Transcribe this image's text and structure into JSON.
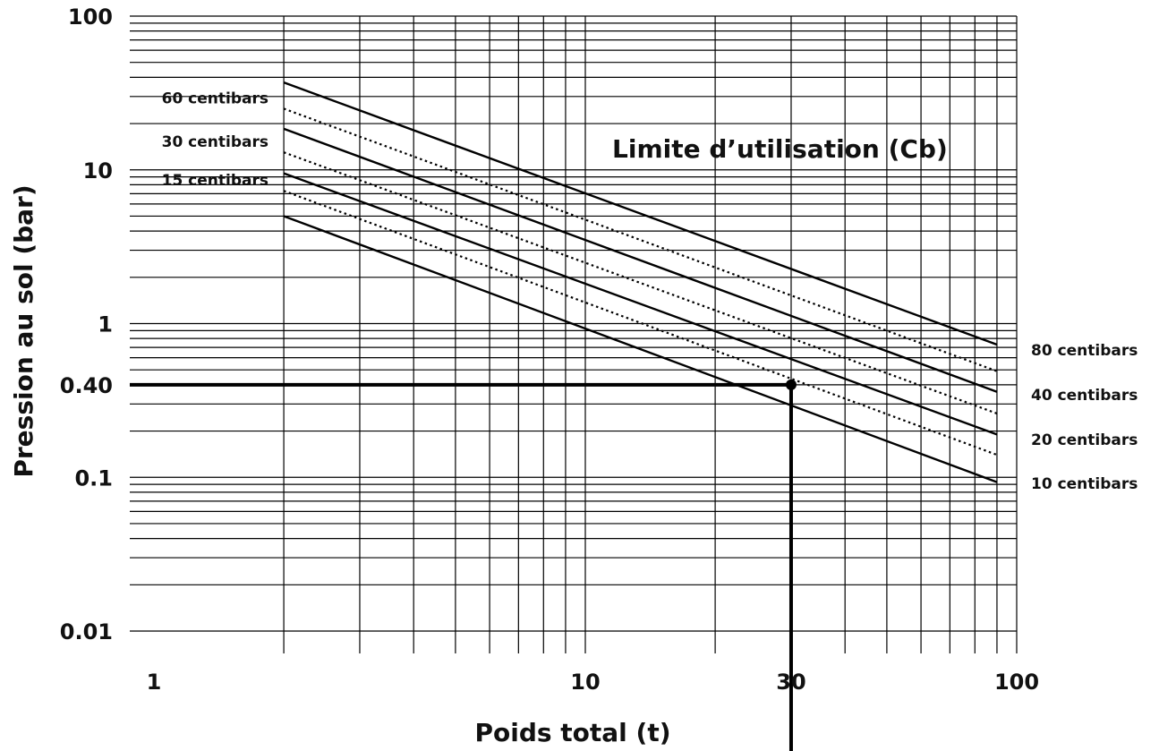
{
  "chart_data": {
    "type": "line",
    "title": "",
    "xlabel": "Poids total (t)",
    "ylabel": "Pression au sol (bar)",
    "x_scale": "log",
    "y_scale": "log",
    "xlim": [
      1,
      100
    ],
    "ylim": [
      0.01,
      100
    ],
    "grid": true,
    "x_tick_labels": [
      "1",
      "10",
      "30",
      "100"
    ],
    "x_ticks": [
      1,
      10,
      30,
      100
    ],
    "y_tick_labels": [
      "100",
      "10",
      "1",
      "0.40",
      "0.1",
      "0.01"
    ],
    "y_ticks": [
      100,
      10,
      1,
      0.4,
      0.1,
      0.01
    ],
    "annotation": "Limite d’utilisation (Cb)",
    "series": [
      {
        "name": "80 centibars",
        "style": "solid",
        "x": [
          2,
          90
        ],
        "y": [
          37,
          0.73
        ]
      },
      {
        "name": "60 centibars",
        "style": "dotted",
        "x": [
          2,
          90
        ],
        "y": [
          25,
          0.49
        ]
      },
      {
        "name": "40 centibars",
        "style": "solid",
        "x": [
          2,
          90
        ],
        "y": [
          18.5,
          0.36
        ]
      },
      {
        "name": "30 centibars",
        "style": "dotted",
        "x": [
          2,
          90
        ],
        "y": [
          13,
          0.26
        ]
      },
      {
        "name": "20 centibars",
        "style": "solid",
        "x": [
          2,
          90
        ],
        "y": [
          9.5,
          0.19
        ]
      },
      {
        "name": "15 centibars",
        "style": "dotted",
        "x": [
          2,
          90
        ],
        "y": [
          7.3,
          0.14
        ]
      },
      {
        "name": "10 centibars",
        "style": "solid",
        "x": [
          2,
          90
        ],
        "y": [
          5,
          0.093
        ]
      }
    ],
    "reference": {
      "x": 30,
      "y": 0.4
    }
  }
}
